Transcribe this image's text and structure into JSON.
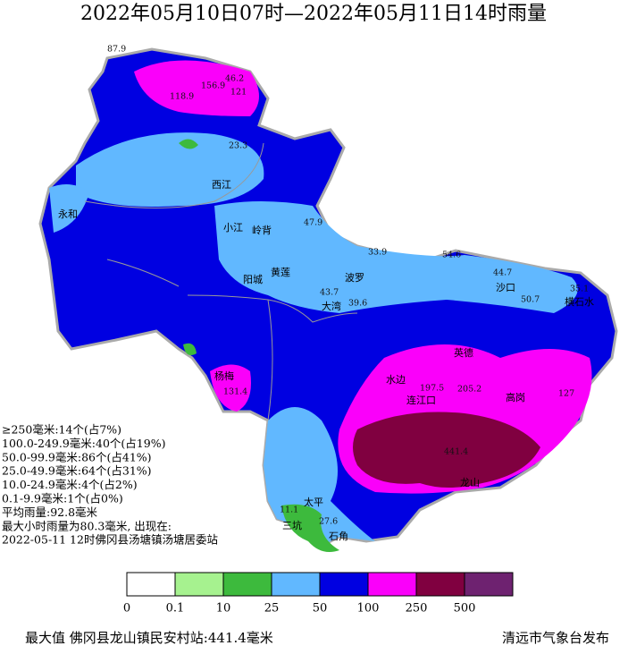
{
  "header": {
    "title": "2022年05月10日07时—2022年05月11日14时雨量"
  },
  "stats": [
    "≥250毫米:14个(占7%)",
    "100.0-249.9毫米:40个(占19%)",
    "50.0-99.9毫米:86个(占41%)",
    "25.0-49.9毫米:64个(占31%)",
    "10.0-24.9毫米:4个(占2%)",
    "0.1-9.9毫米:1个(占0%)",
    "平均雨量:92.8毫米",
    "最大小时雨量为80.3毫米, 出现在:",
    "2022-05-11 12时佛冈县汤塘镇汤塘居委站"
  ],
  "map": {
    "places": [
      "西江",
      "小江",
      "岭背",
      "阳城",
      "黄莲",
      "大湾",
      "波罗",
      "沙口",
      "横石水",
      "英德",
      "高岗",
      "水边",
      "连江口",
      "龙山",
      "三坑",
      "石角",
      "太平",
      "杨梅",
      "永和"
    ],
    "values": [
      "87.9",
      "118.9",
      "156.9",
      "121",
      "46.2",
      "23.3",
      "47.9",
      "33.9",
      "54.6",
      "44.7",
      "43.7",
      "39.6",
      "197.5",
      "205.2",
      "131.4",
      "11.1",
      "27.6",
      "50.7",
      "35.1",
      "127",
      "441.4"
    ]
  },
  "legend": {
    "colors": [
      "#ffffff",
      "#a6f28f",
      "#3dba3d",
      "#61b8ff",
      "#0000e1",
      "#fa00fa",
      "#800040",
      "#6e2270"
    ],
    "ticks": [
      "0",
      "0.1",
      "10",
      "25",
      "50",
      "100",
      "250",
      "500"
    ]
  },
  "footer": {
    "max": "最大值 佛冈县龙山镇民安村站:441.4毫米",
    "publisher": "清远市气象台发布"
  }
}
